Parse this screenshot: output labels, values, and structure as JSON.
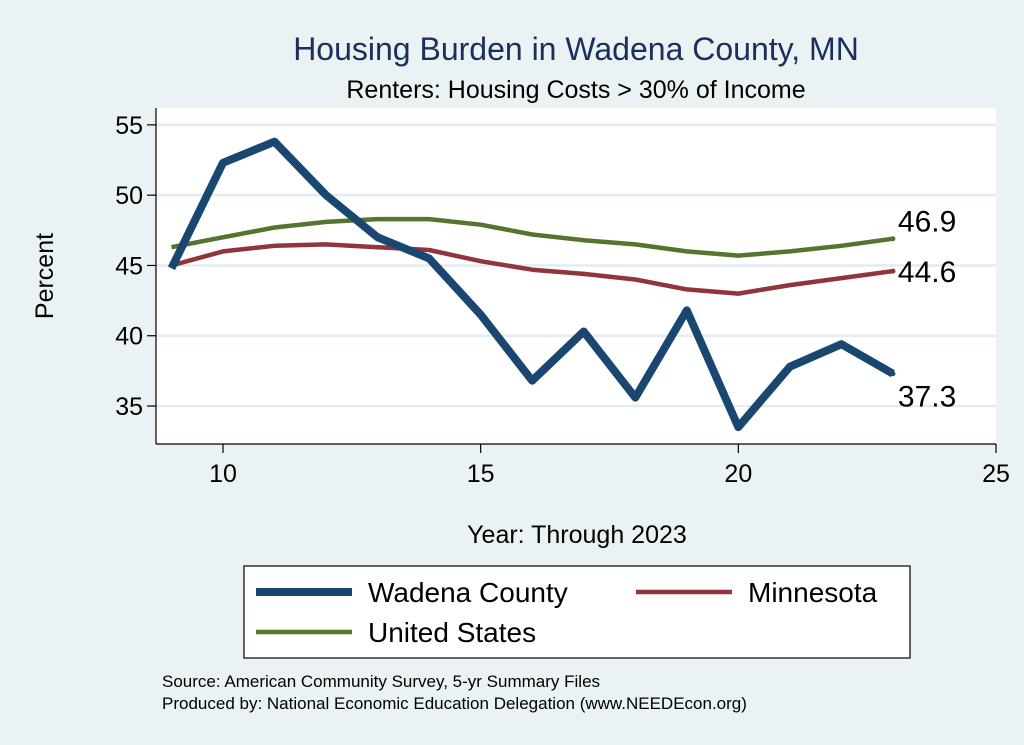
{
  "chart_data": {
    "type": "line",
    "title": "Housing Burden in Wadena County, MN",
    "subtitle": "Renters: Housing Costs > 30% of Income",
    "xlabel": "Year: Through 2023",
    "ylabel": "Percent",
    "xlim": [
      8.7,
      25
    ],
    "ylim": [
      32.3,
      56.2
    ],
    "xticks": [
      10,
      15,
      20,
      25
    ],
    "yticks": [
      35,
      40,
      45,
      50,
      55
    ],
    "grid": "horizontal",
    "legend_position": "bottom",
    "x": [
      9,
      10,
      11,
      12,
      13,
      14,
      15,
      16,
      17,
      18,
      19,
      20,
      21,
      22,
      23
    ],
    "series": [
      {
        "name": "Wadena County",
        "color": "#1a476f",
        "values": [
          44.8,
          52.3,
          53.8,
          50.0,
          47.0,
          45.5,
          41.5,
          36.8,
          40.3,
          35.6,
          41.8,
          33.5,
          37.8,
          39.4,
          37.3
        ],
        "end_label": "37.3"
      },
      {
        "name": "Minnesota",
        "color": "#90353b",
        "values": [
          45.0,
          46.0,
          46.4,
          46.5,
          46.3,
          46.1,
          45.3,
          44.7,
          44.4,
          44.0,
          43.3,
          43.0,
          43.6,
          44.1,
          44.6
        ],
        "end_label": "44.6"
      },
      {
        "name": "United States",
        "color": "#55752f",
        "values": [
          46.3,
          47.0,
          47.7,
          48.1,
          48.3,
          48.3,
          47.9,
          47.2,
          46.8,
          46.5,
          46.0,
          45.7,
          46.0,
          46.4,
          46.9
        ],
        "end_label": "46.9"
      }
    ],
    "notes": [
      "Source: American Community Survey, 5-yr Summary Files",
      "Produced by: National Economic Education Delegation (www.NEEDEcon.org)"
    ]
  }
}
